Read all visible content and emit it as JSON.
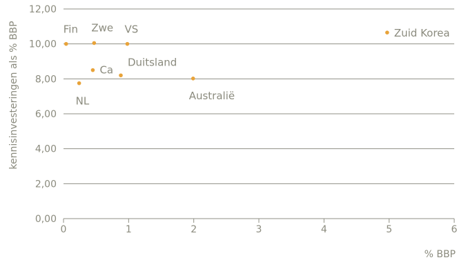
{
  "chart_data": {
    "type": "scatter",
    "xlabel": "% BBP",
    "ylabel": "kennisinvesteringen als % BBP",
    "xlim": [
      0,
      6
    ],
    "ylim": [
      0,
      12
    ],
    "x_ticks": [
      0,
      1,
      2,
      3,
      4,
      5,
      6
    ],
    "x_tick_labels": [
      "0",
      "1",
      "2",
      "3",
      "4",
      "5",
      "6"
    ],
    "y_ticks": [
      0,
      2,
      4,
      6,
      8,
      10,
      12
    ],
    "y_tick_labels": [
      "0,00",
      "2,00",
      "4,00",
      "6,00",
      "8,00",
      "10,00",
      "12,00"
    ],
    "grid": "horizontal",
    "points": [
      {
        "label": "Fin",
        "x": 0.04,
        "y": 10.0
      },
      {
        "label": "Zwe",
        "x": 0.47,
        "y": 10.05
      },
      {
        "label": "VS",
        "x": 0.98,
        "y": 10.0
      },
      {
        "label": "Ca",
        "x": 0.45,
        "y": 8.5
      },
      {
        "label": "Duitsland",
        "x": 0.88,
        "y": 8.2
      },
      {
        "label": "NL",
        "x": 0.24,
        "y": 7.75
      },
      {
        "label": "Australië",
        "x": 1.99,
        "y": 8.02
      },
      {
        "label": "Zuid Korea",
        "x": 4.97,
        "y": 10.65
      }
    ],
    "colors": {
      "points": "#e8a33a",
      "text": "#8b8b7e",
      "lines": "#8f8f84"
    }
  }
}
